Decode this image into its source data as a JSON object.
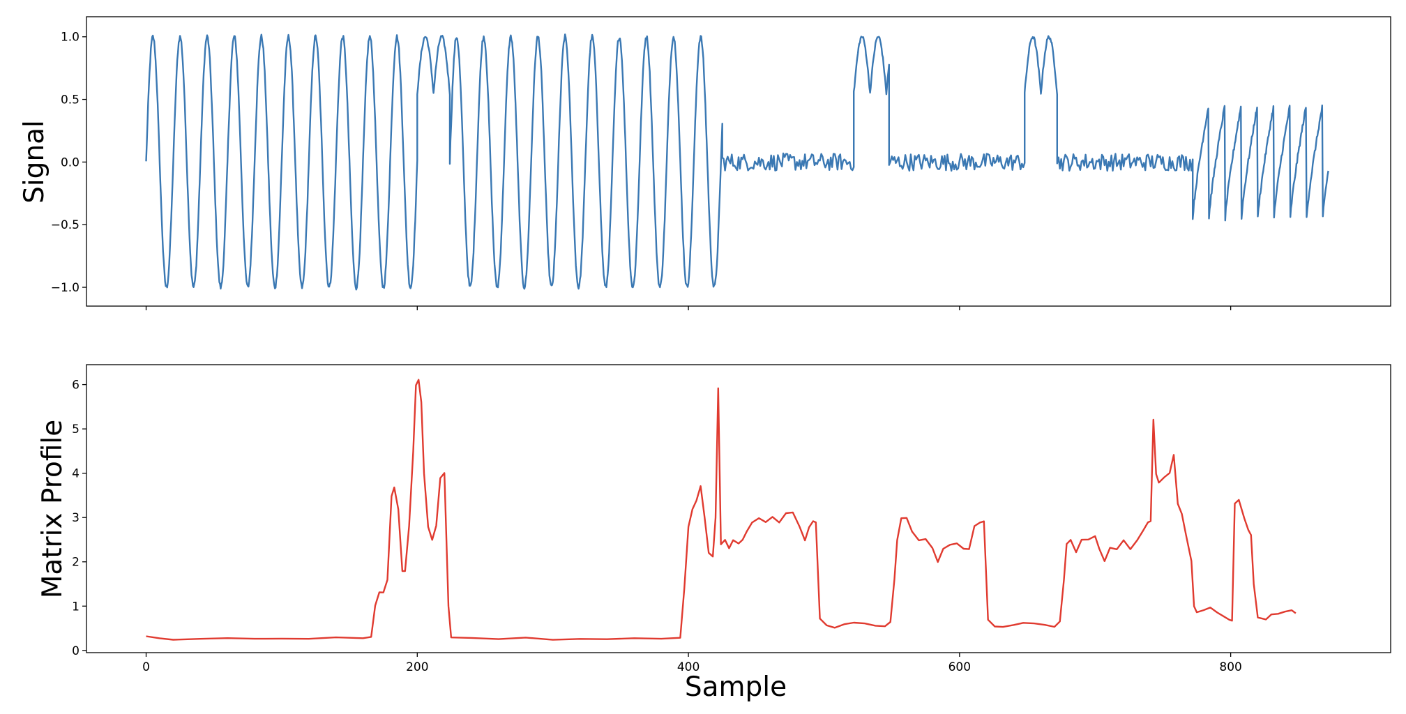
{
  "chart_data": [
    {
      "type": "line",
      "ylabel": "Signal",
      "xlabel": "",
      "xlim": [
        -44,
        918
      ],
      "ylim": [
        -1.15,
        1.16
      ],
      "xticks": [
        0,
        200,
        400,
        600,
        800
      ],
      "show_xtick_labels": false,
      "yticks": [
        -1.0,
        -0.5,
        0.0,
        0.5,
        1.0
      ],
      "ytick_labels": [
        "−1.0",
        "−0.5",
        "0.0",
        "0.5",
        "1.0"
      ],
      "grid": false,
      "color": "#3a78b3",
      "segments": [
        {
          "shape": "sine",
          "start": 0,
          "end": 200,
          "period": 20,
          "amp": 1.0,
          "phase": 0
        },
        {
          "shape": "bumps",
          "start": 200,
          "end": 224,
          "period": 12,
          "base": 0.55,
          "peak": 1.0
        },
        {
          "shape": "sine",
          "start": 224,
          "end": 425,
          "period": 20,
          "amp": 1.0,
          "phase": 0
        },
        {
          "shape": "noise",
          "start": 425,
          "end": 522,
          "amp": 0.07
        },
        {
          "shape": "bumps",
          "start": 522,
          "end": 548,
          "period": 12,
          "base": 0.55,
          "peak": 1.0
        },
        {
          "shape": "noise",
          "start": 548,
          "end": 648,
          "amp": 0.07
        },
        {
          "shape": "bumps",
          "start": 648,
          "end": 672,
          "period": 12,
          "base": 0.55,
          "peak": 1.0
        },
        {
          "shape": "noise",
          "start": 672,
          "end": 772,
          "amp": 0.07
        },
        {
          "shape": "saw",
          "start": 772,
          "end": 872,
          "period": 12,
          "low": -0.45,
          "high": 0.47
        }
      ]
    },
    {
      "type": "line",
      "xlabel": "Sample",
      "ylabel": "Matrix Profile",
      "xlim": [
        -44,
        918
      ],
      "ylim": [
        -0.05,
        6.45
      ],
      "xticks": [
        0,
        200,
        400,
        600,
        800
      ],
      "xtick_labels": [
        "0",
        "200",
        "400",
        "600",
        "800"
      ],
      "yticks": [
        0,
        1,
        2,
        3,
        4,
        5,
        6
      ],
      "ytick_labels": [
        "0",
        "1",
        "2",
        "3",
        "4",
        "5",
        "6"
      ],
      "grid": false,
      "color": "#e03a2f",
      "points": [
        [
          0,
          0.32
        ],
        [
          10,
          0.27
        ],
        [
          20,
          0.25
        ],
        [
          40,
          0.26
        ],
        [
          60,
          0.27
        ],
        [
          80,
          0.26
        ],
        [
          100,
          0.27
        ],
        [
          120,
          0.27
        ],
        [
          140,
          0.28
        ],
        [
          160,
          0.28
        ],
        [
          166,
          0.29
        ],
        [
          169,
          1.0
        ],
        [
          172,
          1.3
        ],
        [
          175,
          1.3
        ],
        [
          178,
          1.6
        ],
        [
          181,
          3.5
        ],
        [
          183,
          3.7
        ],
        [
          186,
          3.2
        ],
        [
          189,
          1.8
        ],
        [
          191,
          1.8
        ],
        [
          194,
          2.8
        ],
        [
          197,
          4.5
        ],
        [
          199,
          6.0
        ],
        [
          201,
          6.1
        ],
        [
          203,
          5.6
        ],
        [
          205,
          4.0
        ],
        [
          208,
          2.8
        ],
        [
          211,
          2.5
        ],
        [
          214,
          2.8
        ],
        [
          217,
          3.9
        ],
        [
          220,
          4.0
        ],
        [
          223,
          1.0
        ],
        [
          225,
          0.3
        ],
        [
          240,
          0.27
        ],
        [
          260,
          0.26
        ],
        [
          280,
          0.27
        ],
        [
          300,
          0.26
        ],
        [
          320,
          0.25
        ],
        [
          340,
          0.26
        ],
        [
          360,
          0.27
        ],
        [
          380,
          0.28
        ],
        [
          394,
          0.28
        ],
        [
          397,
          1.4
        ],
        [
          400,
          2.8
        ],
        [
          403,
          3.2
        ],
        [
          406,
          3.4
        ],
        [
          409,
          3.7
        ],
        [
          412,
          3.0
        ],
        [
          415,
          2.2
        ],
        [
          418,
          2.1
        ],
        [
          420,
          3.0
        ],
        [
          422,
          5.9
        ],
        [
          424,
          2.4
        ],
        [
          427,
          2.5
        ],
        [
          430,
          2.3
        ],
        [
          433,
          2.5
        ],
        [
          437,
          2.4
        ],
        [
          440,
          2.5
        ],
        [
          443,
          2.7
        ],
        [
          447,
          2.9
        ],
        [
          452,
          3.0
        ],
        [
          457,
          2.9
        ],
        [
          462,
          3.0
        ],
        [
          467,
          2.9
        ],
        [
          472,
          3.1
        ],
        [
          477,
          3.1
        ],
        [
          482,
          2.8
        ],
        [
          486,
          2.5
        ],
        [
          489,
          2.8
        ],
        [
          492,
          2.9
        ],
        [
          494,
          2.9
        ],
        [
          497,
          0.7
        ],
        [
          502,
          0.55
        ],
        [
          508,
          0.52
        ],
        [
          515,
          0.58
        ],
        [
          522,
          0.64
        ],
        [
          530,
          0.6
        ],
        [
          538,
          0.56
        ],
        [
          545,
          0.55
        ],
        [
          549,
          0.65
        ],
        [
          552,
          1.6
        ],
        [
          554,
          2.5
        ],
        [
          557,
          3.0
        ],
        [
          561,
          3.0
        ],
        [
          565,
          2.7
        ],
        [
          570,
          2.5
        ],
        [
          575,
          2.5
        ],
        [
          580,
          2.3
        ],
        [
          584,
          2.0
        ],
        [
          588,
          2.3
        ],
        [
          593,
          2.4
        ],
        [
          598,
          2.4
        ],
        [
          603,
          2.3
        ],
        [
          607,
          2.3
        ],
        [
          611,
          2.8
        ],
        [
          615,
          2.9
        ],
        [
          618,
          2.9
        ],
        [
          621,
          0.7
        ],
        [
          626,
          0.55
        ],
        [
          632,
          0.52
        ],
        [
          640,
          0.58
        ],
        [
          647,
          0.64
        ],
        [
          655,
          0.6
        ],
        [
          663,
          0.56
        ],
        [
          670,
          0.55
        ],
        [
          674,
          0.65
        ],
        [
          677,
          1.6
        ],
        [
          679,
          2.4
        ],
        [
          682,
          2.5
        ],
        [
          686,
          2.2
        ],
        [
          690,
          2.5
        ],
        [
          695,
          2.5
        ],
        [
          700,
          2.6
        ],
        [
          703,
          2.3
        ],
        [
          707,
          2.0
        ],
        [
          711,
          2.3
        ],
        [
          716,
          2.3
        ],
        [
          721,
          2.5
        ],
        [
          726,
          2.3
        ],
        [
          731,
          2.5
        ],
        [
          735,
          2.7
        ],
        [
          739,
          2.9
        ],
        [
          741,
          2.9
        ],
        [
          743,
          5.2
        ],
        [
          745,
          4.0
        ],
        [
          747,
          3.8
        ],
        [
          751,
          3.9
        ],
        [
          755,
          4.0
        ],
        [
          758,
          4.4
        ],
        [
          761,
          3.3
        ],
        [
          764,
          3.1
        ],
        [
          767,
          2.6
        ],
        [
          771,
          2.0
        ],
        [
          773,
          1.0
        ],
        [
          775,
          0.85
        ],
        [
          780,
          0.9
        ],
        [
          785,
          0.95
        ],
        [
          790,
          0.85
        ],
        [
          795,
          0.78
        ],
        [
          799,
          0.7
        ],
        [
          801,
          0.68
        ],
        [
          803,
          3.3
        ],
        [
          806,
          3.4
        ],
        [
          810,
          3.0
        ],
        [
          813,
          2.7
        ],
        [
          815,
          2.6
        ],
        [
          817,
          1.5
        ],
        [
          820,
          0.75
        ],
        [
          826,
          0.7
        ],
        [
          830,
          0.8
        ],
        [
          835,
          0.82
        ],
        [
          840,
          0.87
        ],
        [
          845,
          0.9
        ],
        [
          848,
          0.84
        ]
      ]
    }
  ]
}
